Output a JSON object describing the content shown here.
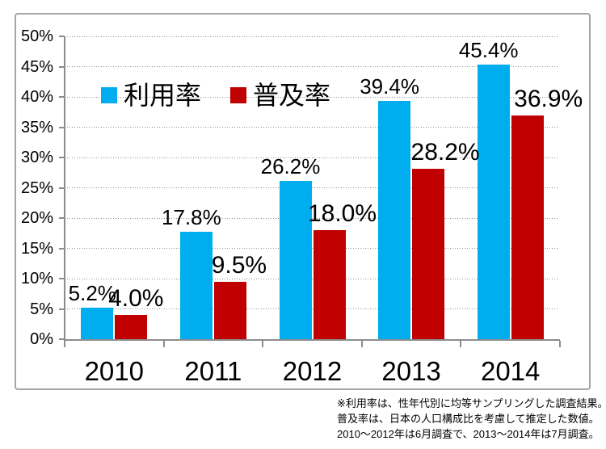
{
  "chart_data": {
    "type": "bar",
    "title": "",
    "categories": [
      "2010",
      "2011",
      "2012",
      "2013",
      "2014"
    ],
    "series": [
      {
        "name": "利用率",
        "color": "#00AEEF",
        "values": [
          5.2,
          17.8,
          26.2,
          39.4,
          45.4
        ],
        "labels": [
          "5.2%",
          "17.8%",
          "26.2%",
          "39.4%",
          "45.4%"
        ]
      },
      {
        "name": "普及率",
        "color": "#C00000",
        "values": [
          4.0,
          9.5,
          18.0,
          28.2,
          36.9
        ],
        "labels": [
          "4.0%",
          "9.5%",
          "18.0%",
          "28.2%",
          "36.9%"
        ]
      }
    ],
    "xlabel": "",
    "ylabel": "",
    "ylim": [
      0,
      50
    ],
    "ytick_step": 5,
    "ytick_labels": [
      "0%",
      "5%",
      "10%",
      "15%",
      "20%",
      "25%",
      "30%",
      "35%",
      "40%",
      "45%",
      "50%"
    ],
    "grid": "horizontal-dotted",
    "legend_position": "inside-top-left"
  },
  "legend": {
    "items": [
      {
        "label": "利用率",
        "color": "#00AEEF"
      },
      {
        "label": "普及率",
        "color": "#C00000"
      }
    ]
  },
  "footnote": {
    "lines": [
      "※利用率は、性年代別に均等サンプリングした調査結果。",
      "普及率は、日本の人口構成比を考慮して推定した数値。",
      "2010〜2012年は6月調査で、2013〜2014年は7月調査。"
    ]
  }
}
